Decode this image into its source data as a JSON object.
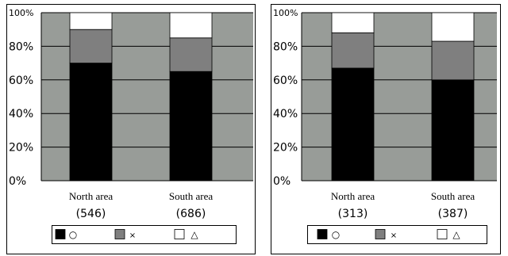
{
  "colors": {
    "plot_background": "#989c98",
    "answer_circle": "#000000",
    "answer_cross": "#7f7f7f",
    "answer_triangle": "#ffffff",
    "gridline": "#000000"
  },
  "legend": [
    {
      "symbol": "○",
      "color": "#000000"
    },
    {
      "symbol": "×",
      "color": "#7f7f7f"
    },
    {
      "symbol": "△",
      "color": "#ffffff"
    }
  ],
  "chart_data": [
    {
      "type": "bar",
      "stacked": true,
      "categories": [
        "North area",
        "South area"
      ],
      "sample_sizes": [
        "(546)",
        "(686)"
      ],
      "series": [
        {
          "name": "○",
          "values": [
            70,
            65
          ]
        },
        {
          "name": "×",
          "values": [
            20,
            20
          ]
        },
        {
          "name": "△",
          "values": [
            10,
            15
          ]
        }
      ],
      "ylim": [
        0,
        100
      ],
      "y_ticks": [
        "0%",
        "20%",
        "40%",
        "60%",
        "80%",
        "100%"
      ],
      "grid": true,
      "legend_position": "bottom"
    },
    {
      "type": "bar",
      "stacked": true,
      "categories": [
        "North area",
        "South area"
      ],
      "sample_sizes": [
        "(313)",
        "(387)"
      ],
      "series": [
        {
          "name": "○",
          "values": [
            67,
            60
          ]
        },
        {
          "name": "×",
          "values": [
            21,
            23
          ]
        },
        {
          "name": "△",
          "values": [
            12,
            17
          ]
        }
      ],
      "ylim": [
        0,
        100
      ],
      "y_ticks": [
        "0%",
        "20%",
        "40%",
        "60%",
        "80%",
        "100%"
      ],
      "grid": true,
      "legend_position": "bottom"
    }
  ]
}
